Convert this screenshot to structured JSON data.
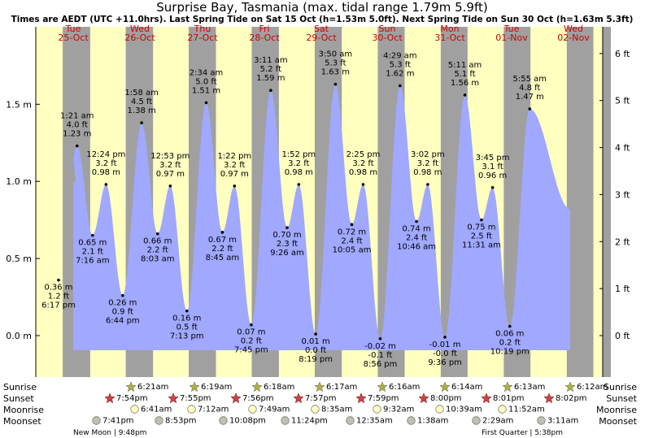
{
  "chart_data": {
    "type": "area",
    "title": "Surprise Bay, Tasmania (max. tidal range 1.79m 5.9ft)",
    "subtitle": "Times are AEDT (UTC +11.0hrs). Last Spring Tide on Sat 15 Oct (h=1.53m 5.0ft). Next Spring Tide on Sun 30 Oct (h=1.63m 5.3ft)",
    "days": [
      {
        "name": "Tue",
        "date": "25-Oct"
      },
      {
        "name": "Wed",
        "date": "26-Oct"
      },
      {
        "name": "Thu",
        "date": "27-Oct"
      },
      {
        "name": "Fri",
        "date": "28-Oct"
      },
      {
        "name": "Sat",
        "date": "29-Oct"
      },
      {
        "name": "Sun",
        "date": "30-Oct"
      },
      {
        "name": "Mon",
        "date": "31-Oct"
      },
      {
        "name": "Tue",
        "date": "01-Nov"
      },
      {
        "name": "Wed",
        "date": "02-Nov"
      }
    ],
    "y_left_ticks": [
      {
        "v": 0.0,
        "label": "0.0 m"
      },
      {
        "v": 0.5,
        "label": "0.5 m"
      },
      {
        "v": 1.0,
        "label": "1.0 m"
      },
      {
        "v": 1.5,
        "label": "1.5 m"
      }
    ],
    "y_right_ticks": [
      {
        "v": 0,
        "label": "0 ft"
      },
      {
        "v": 1,
        "label": "1 ft"
      },
      {
        "v": 2,
        "label": "2 ft"
      },
      {
        "v": 3,
        "label": "3 ft"
      },
      {
        "v": 4,
        "label": "4 ft"
      },
      {
        "v": 5,
        "label": "5 ft"
      },
      {
        "v": 6,
        "label": "6 ft"
      }
    ],
    "ylim_m": [
      -0.27,
      1.94
    ],
    "start_height_m": 1.0,
    "end_height_m": 0.82,
    "tides": [
      {
        "day": 0,
        "t": "18:17",
        "h": 0.36,
        "ft": "1.2 ft",
        "m": "0.36 m",
        "time": "6:17 pm",
        "type": "low"
      },
      {
        "day": 1,
        "t": "01:21",
        "h": 1.23,
        "ft": "4.0 ft",
        "m": "1.23 m",
        "time": "1:21 am",
        "type": "high"
      },
      {
        "day": 1,
        "t": "07:16",
        "h": 0.65,
        "ft": "2.1 ft",
        "m": "0.65 m",
        "time": "7:16 am",
        "type": "low"
      },
      {
        "day": 1,
        "t": "12:24",
        "h": 0.98,
        "ft": "3.2 ft",
        "m": "0.98 m",
        "time": "12:24 pm",
        "type": "high"
      },
      {
        "day": 1,
        "t": "18:44",
        "h": 0.26,
        "ft": "0.9 ft",
        "m": "0.26 m",
        "time": "6:44 pm",
        "type": "low"
      },
      {
        "day": 2,
        "t": "01:58",
        "h": 1.38,
        "ft": "4.5 ft",
        "m": "1.38 m",
        "time": "1:58 am",
        "type": "high"
      },
      {
        "day": 2,
        "t": "08:03",
        "h": 0.66,
        "ft": "2.2 ft",
        "m": "0.66 m",
        "time": "8:03 am",
        "type": "low"
      },
      {
        "day": 2,
        "t": "12:53",
        "h": 0.97,
        "ft": "3.2 ft",
        "m": "0.97 m",
        "time": "12:53 pm",
        "type": "high"
      },
      {
        "day": 2,
        "t": "19:13",
        "h": 0.16,
        "ft": "0.5 ft",
        "m": "0.16 m",
        "time": "7:13 pm",
        "type": "low"
      },
      {
        "day": 3,
        "t": "02:34",
        "h": 1.51,
        "ft": "5.0 ft",
        "m": "1.51 m",
        "time": "2:34 am",
        "type": "high"
      },
      {
        "day": 3,
        "t": "08:45",
        "h": 0.67,
        "ft": "2.2 ft",
        "m": "0.67 m",
        "time": "8:45 am",
        "type": "low"
      },
      {
        "day": 3,
        "t": "13:22",
        "h": 0.97,
        "ft": "3.2 ft",
        "m": "0.97 m",
        "time": "1:22 pm",
        "type": "high"
      },
      {
        "day": 3,
        "t": "19:45",
        "h": 0.07,
        "ft": "0.2 ft",
        "m": "0.07 m",
        "time": "7:45 pm",
        "type": "low"
      },
      {
        "day": 4,
        "t": "03:11",
        "h": 1.59,
        "ft": "5.2 ft",
        "m": "1.59 m",
        "time": "3:11 am",
        "type": "high"
      },
      {
        "day": 4,
        "t": "09:26",
        "h": 0.7,
        "ft": "2.3 ft",
        "m": "0.70 m",
        "time": "9:26 am",
        "type": "low"
      },
      {
        "day": 4,
        "t": "13:52",
        "h": 0.98,
        "ft": "3.2 ft",
        "m": "0.98 m",
        "time": "1:52 pm",
        "type": "high"
      },
      {
        "day": 4,
        "t": "20:19",
        "h": 0.01,
        "ft": "0.0 ft",
        "m": "0.01 m",
        "time": "8:19 pm",
        "type": "low"
      },
      {
        "day": 5,
        "t": "03:50",
        "h": 1.63,
        "ft": "5.3 ft",
        "m": "1.63 m",
        "time": "3:50 am",
        "type": "high"
      },
      {
        "day": 5,
        "t": "10:05",
        "h": 0.72,
        "ft": "2.4 ft",
        "m": "0.72 m",
        "time": "10:05 am",
        "type": "low"
      },
      {
        "day": 5,
        "t": "14:25",
        "h": 0.98,
        "ft": "3.2 ft",
        "m": "0.98 m",
        "time": "2:25 pm",
        "type": "high"
      },
      {
        "day": 5,
        "t": "20:56",
        "h": -0.02,
        "ft": "-0.1 ft",
        "m": "-0.02 m",
        "time": "8:56 pm",
        "type": "low"
      },
      {
        "day": 6,
        "t": "04:29",
        "h": 1.62,
        "ft": "5.3 ft",
        "m": "1.62 m",
        "time": "4:29 am",
        "type": "high"
      },
      {
        "day": 6,
        "t": "10:46",
        "h": 0.74,
        "ft": "2.4 ft",
        "m": "0.74 m",
        "time": "10:46 am",
        "type": "low"
      },
      {
        "day": 6,
        "t": "15:02",
        "h": 0.98,
        "ft": "3.2 ft",
        "m": "0.98 m",
        "time": "3:02 pm",
        "type": "high"
      },
      {
        "day": 6,
        "t": "21:36",
        "h": -0.01,
        "ft": "-0.0 ft",
        "m": "-0.01 m",
        "time": "9:36 pm",
        "type": "low"
      },
      {
        "day": 7,
        "t": "05:11",
        "h": 1.56,
        "ft": "5.1 ft",
        "m": "1.56 m",
        "time": "5:11 am",
        "type": "high"
      },
      {
        "day": 7,
        "t": "11:31",
        "h": 0.75,
        "ft": "2.5 ft",
        "m": "0.75 m",
        "time": "11:31 am",
        "type": "low"
      },
      {
        "day": 7,
        "t": "15:45",
        "h": 0.96,
        "ft": "3.1 ft",
        "m": "0.96 m",
        "time": "3:45 pm",
        "type": "high"
      },
      {
        "day": 7,
        "t": "22:19",
        "h": 0.06,
        "ft": "0.2 ft",
        "m": "0.06 m",
        "time": "10:19 pm",
        "type": "low"
      },
      {
        "day": 8,
        "t": "05:55",
        "h": 1.47,
        "ft": "4.8 ft",
        "m": "1.47 m",
        "time": "5:55 am",
        "type": "high"
      }
    ],
    "astro": [
      {
        "day": 1,
        "sunrise": "6:21am",
        "sunset": "7:54pm",
        "moonrise": "6:41am",
        "moonset": "7:41pm"
      },
      {
        "day": 2,
        "sunrise": "6:19am",
        "sunset": "7:55pm",
        "moonrise": "7:12am",
        "moonset": "8:53pm"
      },
      {
        "day": 3,
        "sunrise": "6:18am",
        "sunset": "7:56pm",
        "moonrise": "7:49am",
        "moonset": "10:08pm"
      },
      {
        "day": 4,
        "sunrise": "6:17am",
        "sunset": "7:57pm",
        "moonrise": "8:35am",
        "moonset": "11:24pm"
      },
      {
        "day": 5,
        "sunrise": "6:16am",
        "sunset": "7:59pm",
        "moonrise": "9:32am",
        "moonset": "12:35am"
      },
      {
        "day": 6,
        "sunrise": "6:14am",
        "sunset": "8:00pm",
        "moonrise": "10:39am",
        "moonset": "1:38am"
      },
      {
        "day": 7,
        "sunrise": "6:13am",
        "sunset": "8:01pm",
        "moonrise": "11:52am",
        "moonset": "2:29am"
      },
      {
        "day": 8,
        "sunrise": "6:12am",
        "sunset": "8:02pm",
        "moonrise": "",
        "moonset": "3:11am"
      }
    ],
    "moon_phases": [
      {
        "label": "New Moon | 9:48pm"
      },
      {
        "label": "First Quarter | 5:38pm"
      }
    ]
  },
  "row_labels": {
    "sunrise": "Sunrise",
    "sunset": "Sunset",
    "moonrise": "Moonrise",
    "moonset": "Moonset"
  },
  "colors": {
    "day_bg": "#ffffc0",
    "night_bg": "#a0a0a0",
    "water": "#a0a8ff",
    "day_text": "#cc0000",
    "sun_icon": "#b0b040",
    "sunset_icon": "#cc4444",
    "moonrise_icon": "#ffffc0",
    "moonset_icon": "#c0c0b0"
  }
}
